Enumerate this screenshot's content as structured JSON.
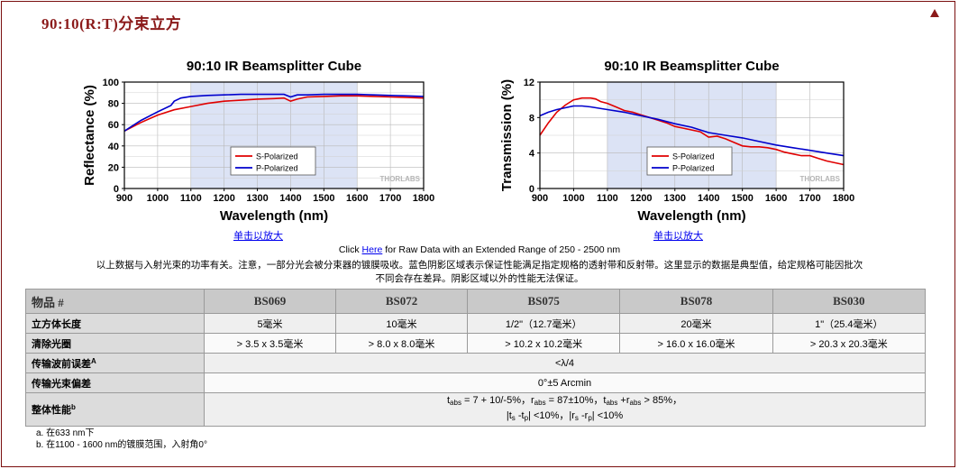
{
  "page": {
    "title": "90:10(R:T)分束立方",
    "colors": {
      "title": "#8b1a1a",
      "frame": "#7a0e0e",
      "s_series": "#e00000",
      "p_series": "#0000cc",
      "shade": "#dce3f5"
    }
  },
  "chart_data": [
    {
      "type": "line",
      "title": "90:10 IR Beamsplitter Cube",
      "xlabel": "Wavelength (nm)",
      "ylabel": "Reflectance (%)",
      "xlim": [
        900,
        1800
      ],
      "ylim": [
        0,
        100
      ],
      "xticks": [
        "900",
        "1000",
        "1100",
        "1200",
        "1300",
        "1400",
        "1500",
        "1600",
        "1700",
        "1800"
      ],
      "yticks": [
        "0",
        "20",
        "40",
        "60",
        "80",
        "100"
      ],
      "shaded_region": [
        1100,
        1600
      ],
      "legend_position": "center-left",
      "watermark": "THORLABS",
      "series": [
        {
          "name": "S-Polarized",
          "x": [
            900,
            950,
            1000,
            1050,
            1100,
            1150,
            1200,
            1250,
            1300,
            1350,
            1380,
            1400,
            1420,
            1450,
            1500,
            1550,
            1600,
            1650,
            1700,
            1750,
            1800
          ],
          "values": [
            54,
            62,
            69,
            74,
            77,
            80,
            82,
            83,
            84,
            84.5,
            85,
            82,
            84,
            86,
            86.5,
            87,
            87,
            86.5,
            86,
            85.5,
            85
          ]
        },
        {
          "name": "P-Polarized",
          "x": [
            900,
            950,
            1000,
            1040,
            1050,
            1070,
            1100,
            1150,
            1200,
            1250,
            1300,
            1350,
            1380,
            1400,
            1420,
            1450,
            1500,
            1550,
            1600,
            1650,
            1700,
            1750,
            1800
          ],
          "values": [
            54,
            64,
            72,
            78,
            82,
            85,
            86.5,
            87.5,
            88,
            88.5,
            88.5,
            88.5,
            88.5,
            86,
            88,
            88,
            88.5,
            88.5,
            88.5,
            88,
            87.5,
            87,
            86.5
          ]
        }
      ]
    },
    {
      "type": "line",
      "title": "90:10 IR Beamsplitter Cube",
      "xlabel": "Wavelength (nm)",
      "ylabel": "Transmission (%)",
      "xlim": [
        900,
        1800
      ],
      "ylim": [
        0,
        12
      ],
      "xticks": [
        "900",
        "1000",
        "1100",
        "1200",
        "1300",
        "1400",
        "1500",
        "1600",
        "1700",
        "1800"
      ],
      "yticks": [
        "0",
        "4",
        "8",
        "12"
      ],
      "shaded_region": [
        1100,
        1600
      ],
      "legend_position": "center-right",
      "watermark": "THORLABS",
      "series": [
        {
          "name": "S-Polarized",
          "x": [
            900,
            925,
            950,
            975,
            1000,
            1025,
            1050,
            1065,
            1080,
            1100,
            1125,
            1150,
            1175,
            1200,
            1225,
            1250,
            1275,
            1300,
            1325,
            1350,
            1375,
            1400,
            1425,
            1450,
            1475,
            1500,
            1525,
            1550,
            1575,
            1600,
            1625,
            1650,
            1675,
            1700,
            1725,
            1750,
            1775,
            1800
          ],
          "values": [
            6,
            7.4,
            8.6,
            9.4,
            10,
            10.2,
            10.2,
            10.1,
            9.8,
            9.6,
            9.2,
            8.8,
            8.6,
            8.3,
            8,
            7.7,
            7.4,
            7,
            6.8,
            6.6,
            6.4,
            5.8,
            5.9,
            5.6,
            5.2,
            4.8,
            4.7,
            4.7,
            4.6,
            4.4,
            4.1,
            3.9,
            3.7,
            3.7,
            3.4,
            3.1,
            2.9,
            2.7
          ]
        },
        {
          "name": "P-Polarized",
          "x": [
            900,
            925,
            950,
            975,
            1000,
            1025,
            1050,
            1100,
            1150,
            1200,
            1250,
            1300,
            1350,
            1400,
            1450,
            1500,
            1550,
            1600,
            1650,
            1700,
            1750,
            1800
          ],
          "values": [
            8.2,
            8.6,
            8.9,
            9.1,
            9.3,
            9.3,
            9.2,
            8.9,
            8.6,
            8.2,
            7.8,
            7.3,
            6.9,
            6.3,
            6,
            5.7,
            5.3,
            4.9,
            4.6,
            4.3,
            4,
            3.7
          ]
        }
      ]
    }
  ],
  "links": {
    "enlarge": "单击以放大",
    "raw_prefix": "Click ",
    "raw_link": "Here",
    "raw_suffix": " for Raw Data with an Extended Range of 250 - 2500 nm"
  },
  "note_lines": [
    "以上数据与入射光束的功率有关。注意，一部分光会被分束器的镀膜吸收。蓝色阴影区域表示保证性能满足指定规格的透射带和反射带。这里显示的数据是典型值，给定规格可能因批次",
    "不同会存在差异。阴影区域以外的性能无法保证。"
  ],
  "table": {
    "header": [
      "物品 #",
      "BS069",
      "BS072",
      "BS075",
      "BS078",
      "BS030"
    ],
    "rows": [
      {
        "label": "立方体长度",
        "cells": [
          "5毫米",
          "10毫米",
          "1/2\"（12.7毫米）",
          "20毫米",
          "1\"（25.4毫米）"
        ]
      },
      {
        "label": "清除光圈",
        "cells": [
          "> 3.5 x 3.5毫米",
          "> 8.0 x 8.0毫米",
          "> 10.2 x 10.2毫米",
          "> 16.0 x 16.0毫米",
          "> 20.3 x 20.3毫米"
        ]
      }
    ],
    "wavefront_label": "传输波前误差",
    "wavefront_sup": "A",
    "wavefront_value": "<λ/4",
    "deviation_label": "传输光束偏差",
    "deviation_value": "0°±5 Arcmin",
    "performance_label": "整体性能",
    "performance_sup": "b",
    "perf": {
      "t": "t",
      "abs": "abs",
      "r": "r",
      "s": "s",
      "p": "p",
      "l1_a": " = 7 + 10/-5%，",
      "l1_b": " = 87±10%，",
      "l1_c": " +",
      "l1_d": " > 85%，",
      "l2_bar": "|",
      "l2_minus": " -",
      "l2_a": "| <10%，",
      "l2_b": "| <10%"
    }
  },
  "footnotes": [
    "a. 在633 nm下",
    "b. 在1100 - 1600 nm的镀膜范围，入射角0°"
  ]
}
